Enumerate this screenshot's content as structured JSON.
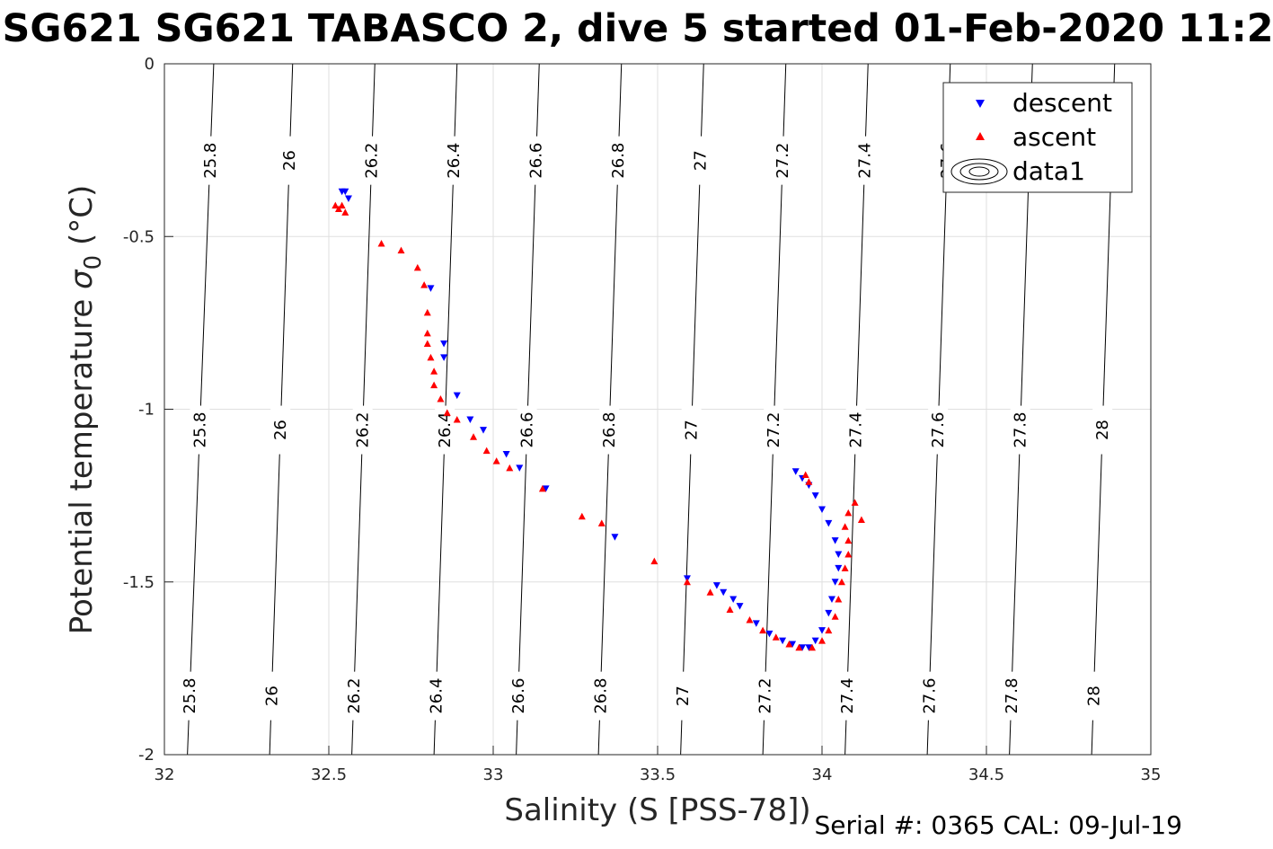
{
  "chart_data": {
    "type": "scatter",
    "title": "SG621 SG621 TABASCO 2, dive 5 started 01-Feb-2020 11:2",
    "xlabel": "Salinity (S [PSS-78])",
    "ylabel_main": "Potential temperature ",
    "ylabel_sigma": "σ",
    "ylabel_sub": "0",
    "ylabel_unit": " (°C)",
    "xlim": [
      32,
      35
    ],
    "ylim": [
      -2,
      0
    ],
    "xticks": [
      32,
      32.5,
      33,
      33.5,
      34,
      34.5,
      35
    ],
    "xtick_labels": [
      "32",
      "32.5",
      "33",
      "33.5",
      "34",
      "34.5",
      "35"
    ],
    "yticks": [
      0,
      -0.5,
      -1,
      -1.5,
      -2
    ],
    "ytick_labels": [
      "0",
      "-0.5",
      "-1",
      "-1.5",
      "-2"
    ],
    "grid": true,
    "legend_position": "top-right",
    "contours": {
      "levels": [
        25.8,
        26,
        26.2,
        26.4,
        26.6,
        26.8,
        27,
        27.2,
        27.4,
        27.6,
        27.8,
        28
      ],
      "labels": [
        "25.8",
        "26",
        "26.2",
        "26.4",
        "26.6",
        "26.8",
        "27",
        "27.2",
        "27.4",
        "27.6",
        "27.8",
        "28"
      ],
      "s_top": [
        32.15,
        32.39,
        32.64,
        32.89,
        33.14,
        33.39,
        33.64,
        33.89,
        34.14,
        34.39,
        34.64,
        34.89
      ],
      "s_bottom": [
        32.07,
        32.32,
        32.57,
        32.82,
        33.07,
        33.32,
        33.57,
        33.82,
        34.07,
        34.32,
        34.57,
        34.82
      ],
      "label_rows": [
        {
          "y": -0.28,
          "count": 10
        },
        {
          "y": -1.06,
          "count": 12
        },
        {
          "y": -1.83,
          "count": 12
        }
      ]
    },
    "series": [
      {
        "name": "descent",
        "color": "#0000ff",
        "marker": "triangle-down",
        "points": [
          [
            32.54,
            -0.37
          ],
          [
            32.55,
            -0.37
          ],
          [
            32.56,
            -0.39
          ],
          [
            32.81,
            -0.65
          ],
          [
            32.85,
            -0.81
          ],
          [
            32.85,
            -0.85
          ],
          [
            32.89,
            -0.96
          ],
          [
            32.93,
            -1.03
          ],
          [
            32.97,
            -1.06
          ],
          [
            33.04,
            -1.13
          ],
          [
            33.08,
            -1.17
          ],
          [
            33.16,
            -1.23
          ],
          [
            33.37,
            -1.37
          ],
          [
            33.59,
            -1.49
          ],
          [
            33.68,
            -1.51
          ],
          [
            33.7,
            -1.53
          ],
          [
            33.73,
            -1.55
          ],
          [
            33.75,
            -1.57
          ],
          [
            33.8,
            -1.62
          ],
          [
            33.84,
            -1.65
          ],
          [
            33.88,
            -1.67
          ],
          [
            33.91,
            -1.68
          ],
          [
            33.94,
            -1.69
          ],
          [
            33.96,
            -1.69
          ],
          [
            33.98,
            -1.67
          ],
          [
            34.0,
            -1.64
          ],
          [
            34.02,
            -1.59
          ],
          [
            34.03,
            -1.55
          ],
          [
            34.04,
            -1.5
          ],
          [
            34.05,
            -1.46
          ],
          [
            34.05,
            -1.42
          ],
          [
            34.04,
            -1.38
          ],
          [
            34.02,
            -1.33
          ],
          [
            34.0,
            -1.29
          ],
          [
            33.98,
            -1.25
          ],
          [
            33.96,
            -1.22
          ],
          [
            33.94,
            -1.2
          ],
          [
            33.92,
            -1.18
          ]
        ]
      },
      {
        "name": "ascent",
        "color": "#ff0000",
        "marker": "triangle-up",
        "points": [
          [
            32.52,
            -0.41
          ],
          [
            32.53,
            -0.42
          ],
          [
            32.54,
            -0.41
          ],
          [
            32.55,
            -0.43
          ],
          [
            32.66,
            -0.52
          ],
          [
            32.72,
            -0.54
          ],
          [
            32.77,
            -0.59
          ],
          [
            32.79,
            -0.64
          ],
          [
            32.8,
            -0.72
          ],
          [
            32.8,
            -0.78
          ],
          [
            32.8,
            -0.81
          ],
          [
            32.81,
            -0.85
          ],
          [
            32.82,
            -0.89
          ],
          [
            32.82,
            -0.93
          ],
          [
            32.84,
            -0.97
          ],
          [
            32.86,
            -1.01
          ],
          [
            32.89,
            -1.03
          ],
          [
            32.94,
            -1.08
          ],
          [
            32.98,
            -1.12
          ],
          [
            33.01,
            -1.15
          ],
          [
            33.05,
            -1.17
          ],
          [
            33.15,
            -1.23
          ],
          [
            33.27,
            -1.31
          ],
          [
            33.33,
            -1.33
          ],
          [
            33.49,
            -1.44
          ],
          [
            33.59,
            -1.5
          ],
          [
            33.66,
            -1.53
          ],
          [
            33.72,
            -1.58
          ],
          [
            33.78,
            -1.61
          ],
          [
            33.82,
            -1.64
          ],
          [
            33.86,
            -1.66
          ],
          [
            33.9,
            -1.68
          ],
          [
            33.93,
            -1.69
          ],
          [
            33.97,
            -1.69
          ],
          [
            34.0,
            -1.67
          ],
          [
            34.02,
            -1.64
          ],
          [
            34.04,
            -1.6
          ],
          [
            34.05,
            -1.55
          ],
          [
            34.06,
            -1.5
          ],
          [
            34.07,
            -1.46
          ],
          [
            34.08,
            -1.42
          ],
          [
            34.08,
            -1.38
          ],
          [
            34.07,
            -1.34
          ],
          [
            34.08,
            -1.3
          ],
          [
            34.1,
            -1.27
          ],
          [
            34.12,
            -1.32
          ],
          [
            33.95,
            -1.19
          ],
          [
            33.96,
            -1.21
          ]
        ]
      },
      {
        "name": "data1",
        "color": "#000000",
        "marker": "contour"
      }
    ],
    "footer": "Serial #: 0365  CAL: 09-Jul-19"
  }
}
